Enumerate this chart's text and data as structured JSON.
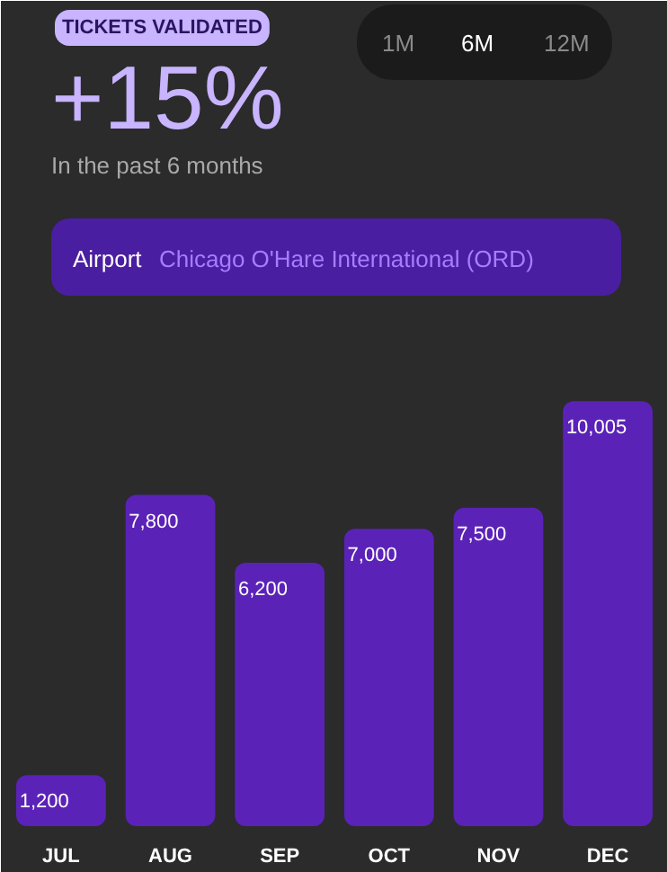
{
  "chart_data": {
    "type": "bar",
    "title": "TICKETS VALIDATED",
    "subtitle": "+15%",
    "annotations": [
      "In the past 6 months",
      "1M",
      "6M",
      "12M",
      "Airport",
      "Chicago O'Hare International (ORD)"
    ],
    "categories": [
      "JUL",
      "AUG",
      "SEP",
      "OCT",
      "NOV",
      "DEC"
    ],
    "values": [
      1200,
      7800,
      6200,
      7000,
      7500,
      10005
    ],
    "value_labels": [
      "1,200",
      "7,800",
      "6,200",
      "7,000",
      "7,500",
      "10,005"
    ],
    "color": "#5b22b8",
    "grid": false
  }
}
